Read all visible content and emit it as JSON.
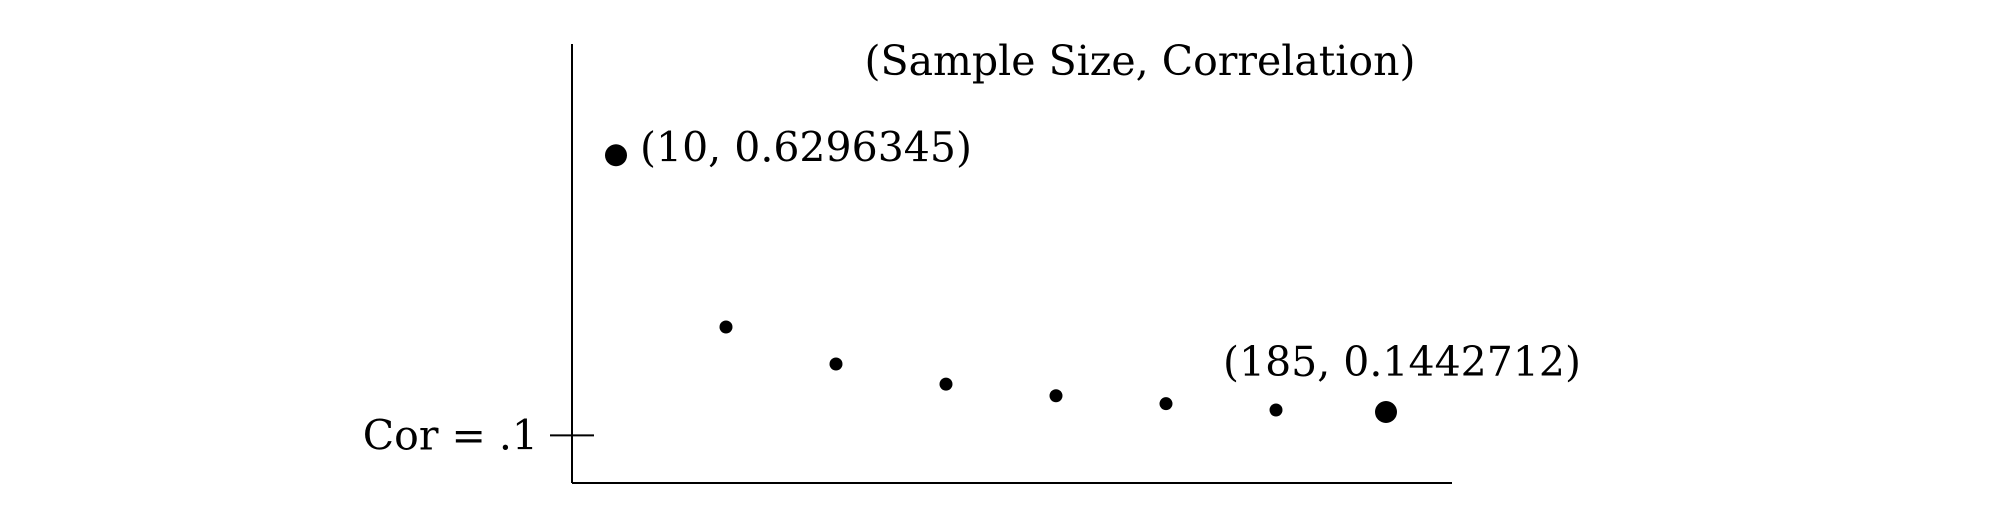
{
  "chart_data": {
    "type": "scatter",
    "title": "(Sample Size, Correlation)",
    "xlabel": "",
    "ylabel": "",
    "x": [
      10,
      35,
      60,
      85,
      110,
      135,
      160,
      185
    ],
    "y": [
      0.6296345,
      0.305,
      0.235,
      0.197,
      0.175,
      0.16,
      0.148,
      0.1442712
    ],
    "xlim": [
      0,
      200
    ],
    "ylim": [
      0.01,
      0.84
    ],
    "grid": false,
    "legend": "none",
    "y_tick": {
      "value": 0.1,
      "label": "Cor = .1"
    },
    "annotations": [
      {
        "x": 10,
        "y": 0.6296345,
        "text": "(10, 0.6296345)"
      },
      {
        "x": 185,
        "y": 0.1442712,
        "text": "(185, 0.1442712)"
      }
    ],
    "highlighted_points": [
      0,
      7
    ],
    "colors": {
      "points": "#000000",
      "axes": "#000000"
    }
  }
}
